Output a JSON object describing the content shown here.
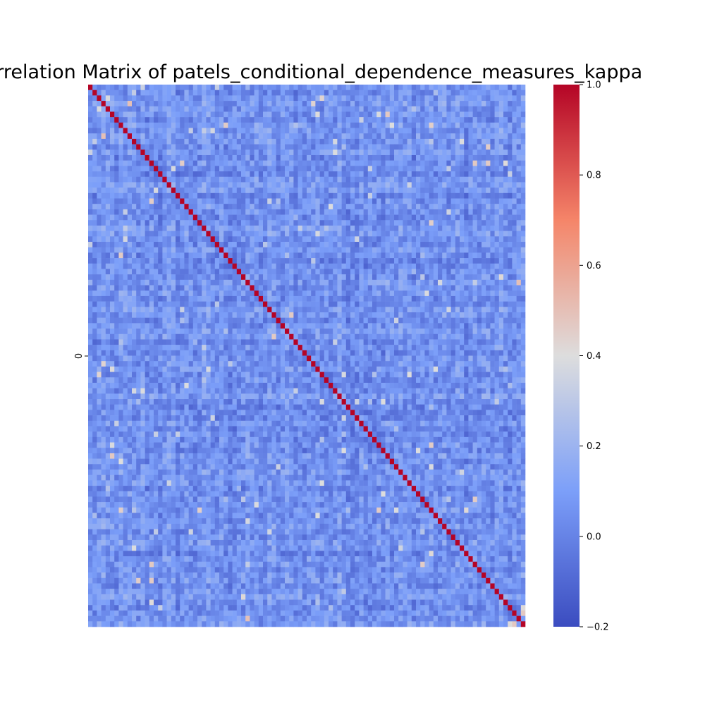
{
  "chart_data": {
    "type": "heatmap",
    "title": "Correlation Matrix of patels_conditional_dependence_measures_kappa",
    "n": 100,
    "ytick_label": "0",
    "diagonal_value": 1.0,
    "off_diagonal_typical_range": [
      -0.15,
      0.5
    ],
    "colormap": "coolwarm",
    "colorbar": {
      "vmin": -0.2,
      "vmax": 1.0,
      "ticks": [
        -0.2,
        0.0,
        0.2,
        0.4,
        0.6,
        0.8,
        1.0
      ],
      "tick_labels": [
        "−0.2",
        "0.0",
        "0.2",
        "0.4",
        "0.6",
        "0.8",
        "1.0"
      ]
    },
    "colors": {
      "low": "#3b4cc0",
      "mid": "#dddddd",
      "high": "#b40426"
    }
  }
}
